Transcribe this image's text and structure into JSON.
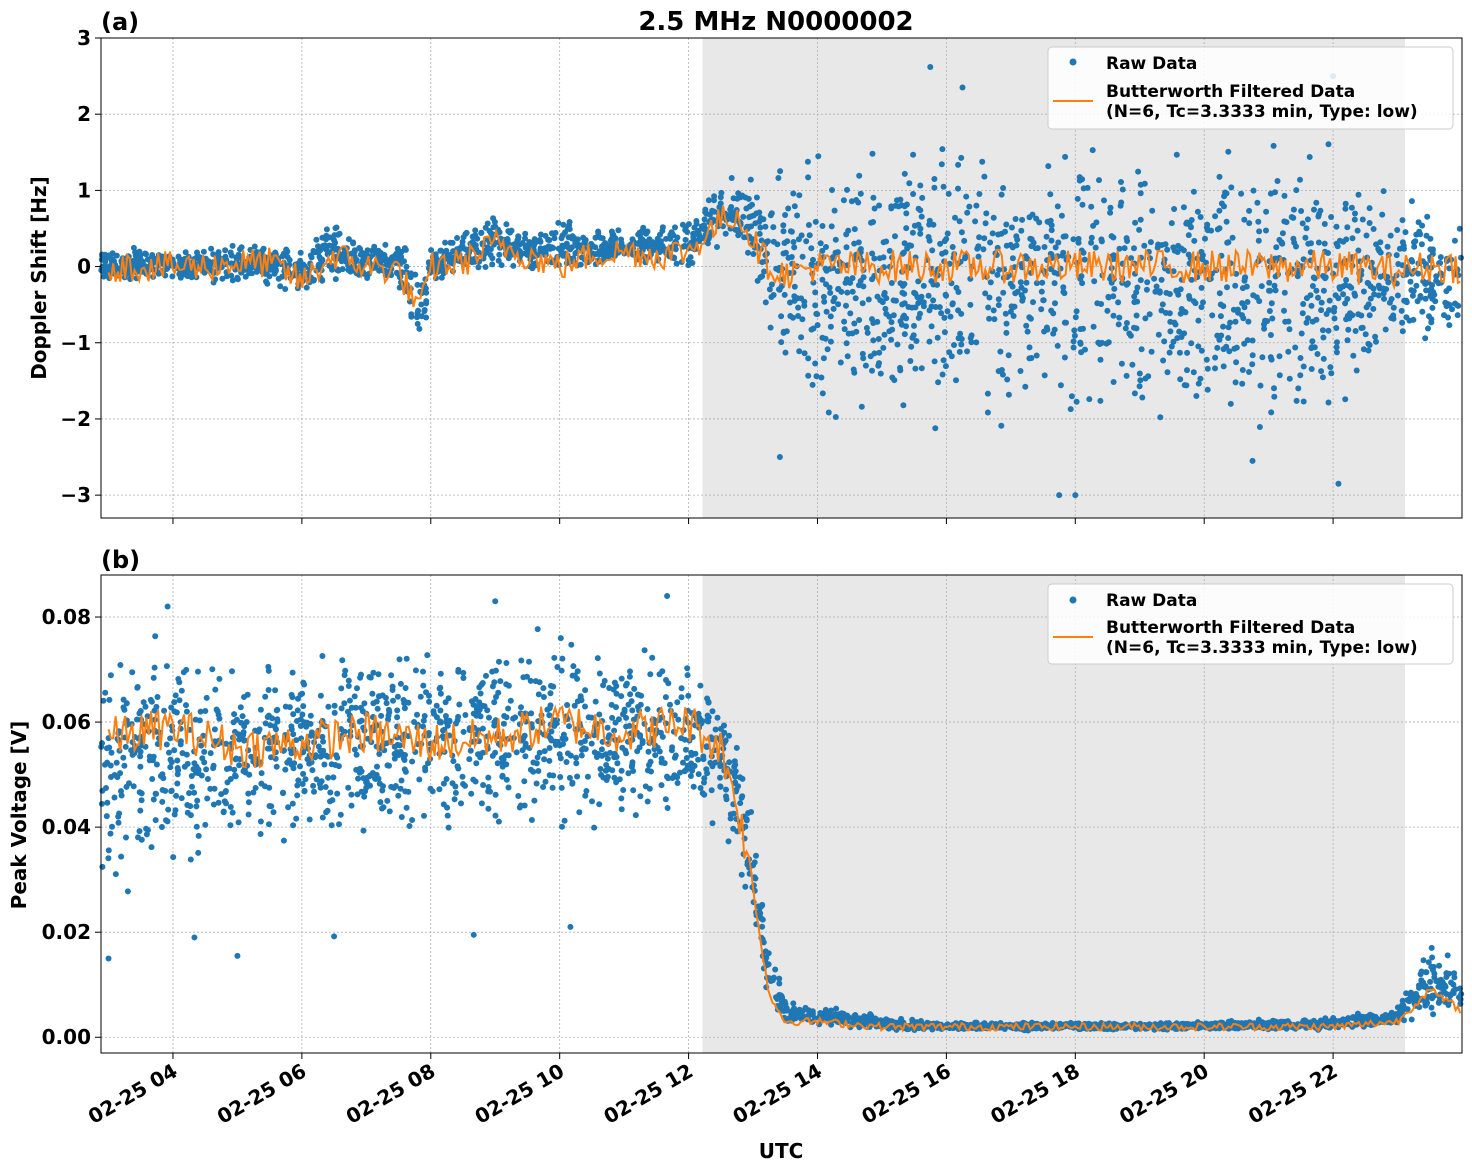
{
  "title": "2.5 MHz N0000002",
  "xlabel": "UTC",
  "colors": {
    "raw": "#1f77b4",
    "filtered": "#ff7f0e",
    "shade": "#e8e8e8",
    "grid": "#b0b0b0"
  },
  "chart_data": [
    {
      "type": "scatter",
      "panel_label": "(a)",
      "title": "2.5 MHz N0000002",
      "xlabel": "",
      "ylabel": "Doppler Shift [Hz]",
      "xlim": [
        "02-25 02:53",
        "02-25 24:00"
      ],
      "ylim": [
        -3.3,
        3.0
      ],
      "yticks": [
        -3,
        -2,
        -1,
        0,
        1,
        2,
        3
      ],
      "ytick_labels": [
        "−3",
        "−2",
        "−1",
        "0",
        "1",
        "2",
        "3"
      ],
      "grid": true,
      "legend_placement": "top-right",
      "shaded_interval": [
        "02-25 12:13",
        "02-25 23:07"
      ],
      "series": [
        {
          "name": "Raw Data",
          "kind": "points",
          "x": [
            "02-25 03:00",
            "02-25 03:30",
            "02-25 04:00",
            "02-25 04:30",
            "02-25 05:00",
            "02-25 05:30",
            "02-25 06:00",
            "02-25 06:30",
            "02-25 07:00",
            "02-25 07:30",
            "02-25 07:50",
            "02-25 08:00",
            "02-25 08:30",
            "02-25 09:00",
            "02-25 09:30",
            "02-25 10:00",
            "02-25 10:30",
            "02-25 11:00",
            "02-25 11:30",
            "02-25 12:00",
            "02-25 12:30",
            "02-25 12:45",
            "02-25 13:00",
            "02-25 13:15",
            "02-25 13:30",
            "02-25 14:00",
            "02-25 15:00",
            "02-25 16:00",
            "02-25 17:00",
            "02-25 18:00",
            "02-25 19:00",
            "02-25 20:00",
            "02-25 21:00",
            "02-25 22:00",
            "02-25 23:00",
            "02-25 23:30",
            "02-25 24:00"
          ],
          "y_min": [
            -0.25,
            -0.25,
            -0.3,
            -0.3,
            -0.25,
            -0.3,
            -0.5,
            -0.3,
            -0.3,
            -0.3,
            -1.4,
            -0.3,
            -0.2,
            -0.1,
            -0.1,
            -0.2,
            -0.1,
            0.0,
            -0.1,
            -0.1,
            0.2,
            0.2,
            -0.3,
            -1.2,
            -2.0,
            -2.2,
            -2.4,
            -2.4,
            -2.4,
            -2.4,
            -2.4,
            -2.4,
            -2.4,
            -2.4,
            -1.6,
            -1.2,
            -1.2
          ],
          "y_max": [
            0.3,
            0.3,
            0.3,
            0.3,
            0.35,
            0.4,
            0.3,
            0.7,
            0.4,
            0.4,
            0.3,
            0.3,
            0.5,
            0.8,
            0.5,
            0.7,
            0.5,
            0.6,
            0.6,
            0.7,
            1.2,
            1.25,
            1.3,
            1.3,
            1.6,
            1.7,
            2.0,
            2.0,
            2.0,
            2.0,
            2.0,
            2.0,
            2.0,
            2.0,
            1.4,
            0.8,
            0.9
          ],
          "outliers": [
            [
              "02-25 15:45",
              2.62
            ],
            [
              "02-25 16:15",
              2.35
            ],
            [
              "02-25 22:00",
              2.5
            ],
            [
              "02-25 17:45",
              -3.0
            ],
            [
              "02-25 18:00",
              -3.0
            ],
            [
              "02-25 13:25",
              -2.5
            ],
            [
              "02-25 22:05",
              -2.85
            ],
            [
              "02-25 20:45",
              -2.55
            ]
          ]
        },
        {
          "name": "Butterworth Filtered Data\n(N=6, Tc=3.3333 min, Type: low)",
          "kind": "line",
          "x": [
            "02-25 03:00",
            "02-25 03:30",
            "02-25 04:00",
            "02-25 04:30",
            "02-25 05:00",
            "02-25 05:30",
            "02-25 06:00",
            "02-25 06:30",
            "02-25 07:00",
            "02-25 07:30",
            "02-25 07:50",
            "02-25 08:00",
            "02-25 08:30",
            "02-25 09:00",
            "02-25 09:30",
            "02-25 10:00",
            "02-25 10:30",
            "02-25 11:00",
            "02-25 11:30",
            "02-25 12:00",
            "02-25 12:30",
            "02-25 12:45",
            "02-25 13:00",
            "02-25 13:15",
            "02-25 13:30",
            "02-25 14:00",
            "02-25 15:00",
            "02-25 16:00",
            "02-25 17:00",
            "02-25 18:00",
            "02-25 19:00",
            "02-25 20:00",
            "02-25 21:00",
            "02-25 22:00",
            "02-25 23:00",
            "02-25 23:30",
            "02-25 24:00"
          ],
          "y": [
            0.0,
            0.0,
            0.0,
            0.0,
            0.05,
            0.05,
            -0.2,
            0.15,
            0.0,
            -0.05,
            -0.6,
            0.0,
            0.05,
            0.3,
            0.15,
            0.0,
            0.15,
            0.2,
            0.15,
            0.2,
            0.6,
            0.7,
            0.35,
            0.0,
            -0.1,
            0.0,
            0.0,
            0.0,
            0.0,
            0.0,
            0.0,
            0.0,
            0.0,
            0.0,
            -0.05,
            0.0,
            0.0
          ],
          "jitter": 0.2
        }
      ]
    },
    {
      "type": "scatter",
      "panel_label": "(b)",
      "title": "",
      "xlabel": "UTC",
      "ylabel": "Peak Voltage [V]",
      "xlim": [
        "02-25 02:53",
        "02-25 24:00"
      ],
      "ylim": [
        -0.003,
        0.088
      ],
      "yticks": [
        0.0,
        0.02,
        0.04,
        0.06,
        0.08
      ],
      "ytick_labels": [
        "0.00",
        "0.02",
        "0.04",
        "0.06",
        "0.08"
      ],
      "xticks": [
        "02-25 04:00",
        "02-25 06:00",
        "02-25 08:00",
        "02-25 10:00",
        "02-25 12:00",
        "02-25 14:00",
        "02-25 16:00",
        "02-25 18:00",
        "02-25 20:00",
        "02-25 22:00"
      ],
      "xtick_labels": [
        "02-25 04",
        "02-25 06",
        "02-25 08",
        "02-25 10",
        "02-25 12",
        "02-25 14",
        "02-25 16",
        "02-25 18",
        "02-25 20",
        "02-25 22"
      ],
      "grid": true,
      "legend_placement": "top-right",
      "shaded_interval": [
        "02-25 12:13",
        "02-25 23:07"
      ],
      "series": [
        {
          "name": "Raw Data",
          "kind": "points",
          "x": [
            "02-25 03:00",
            "02-25 04:00",
            "02-25 05:00",
            "02-25 06:00",
            "02-25 07:00",
            "02-25 08:00",
            "02-25 09:00",
            "02-25 10:00",
            "02-25 11:00",
            "02-25 12:00",
            "02-25 12:30",
            "02-25 12:45",
            "02-25 13:00",
            "02-25 13:15",
            "02-25 13:30",
            "02-25 14:00",
            "02-25 15:00",
            "02-25 16:00",
            "02-25 18:00",
            "02-25 20:00",
            "02-25 22:00",
            "02-25 23:00",
            "02-25 23:30",
            "02-25 24:00"
          ],
          "y_min": [
            0.024,
            0.028,
            0.033,
            0.032,
            0.033,
            0.035,
            0.035,
            0.036,
            0.035,
            0.036,
            0.04,
            0.03,
            0.018,
            0.006,
            0.002,
            0.0015,
            0.0012,
            0.0012,
            0.0012,
            0.0012,
            0.0012,
            0.0015,
            0.002,
            0.002
          ],
          "y_max": [
            0.077,
            0.08,
            0.075,
            0.078,
            0.08,
            0.078,
            0.08,
            0.081,
            0.08,
            0.08,
            0.07,
            0.06,
            0.045,
            0.02,
            0.007,
            0.007,
            0.004,
            0.003,
            0.003,
            0.003,
            0.004,
            0.006,
            0.02,
            0.015
          ],
          "outliers": [
            [
              "02-25 03:00",
              0.015
            ],
            [
              "02-25 04:20",
              0.019
            ],
            [
              "02-25 05:00",
              0.0155
            ],
            [
              "02-25 06:30",
              0.0192
            ],
            [
              "02-25 10:10",
              0.021
            ],
            [
              "02-25 03:55",
              0.082
            ],
            [
              "02-25 09:00",
              0.083
            ],
            [
              "02-25 11:40",
              0.084
            ],
            [
              "02-25 08:40",
              0.0195
            ]
          ]
        },
        {
          "name": "Butterworth Filtered Data\n(N=6, Tc=3.3333 min, Type: low)",
          "kind": "line",
          "x": [
            "02-25 03:00",
            "02-25 04:00",
            "02-25 05:00",
            "02-25 06:00",
            "02-25 07:00",
            "02-25 08:00",
            "02-25 09:00",
            "02-25 10:00",
            "02-25 11:00",
            "02-25 12:00",
            "02-25 12:30",
            "02-25 12:45",
            "02-25 13:00",
            "02-25 13:15",
            "02-25 13:30",
            "02-25 14:00",
            "02-25 15:00",
            "02-25 16:00",
            "02-25 18:00",
            "02-25 20:00",
            "02-25 22:00",
            "02-25 23:00",
            "02-25 23:30",
            "02-25 24:00"
          ],
          "y": [
            0.057,
            0.059,
            0.055,
            0.056,
            0.058,
            0.056,
            0.057,
            0.06,
            0.058,
            0.06,
            0.055,
            0.045,
            0.028,
            0.008,
            0.003,
            0.003,
            0.002,
            0.002,
            0.002,
            0.002,
            0.002,
            0.003,
            0.009,
            0.005
          ],
          "jitter": 0.004
        }
      ]
    }
  ]
}
